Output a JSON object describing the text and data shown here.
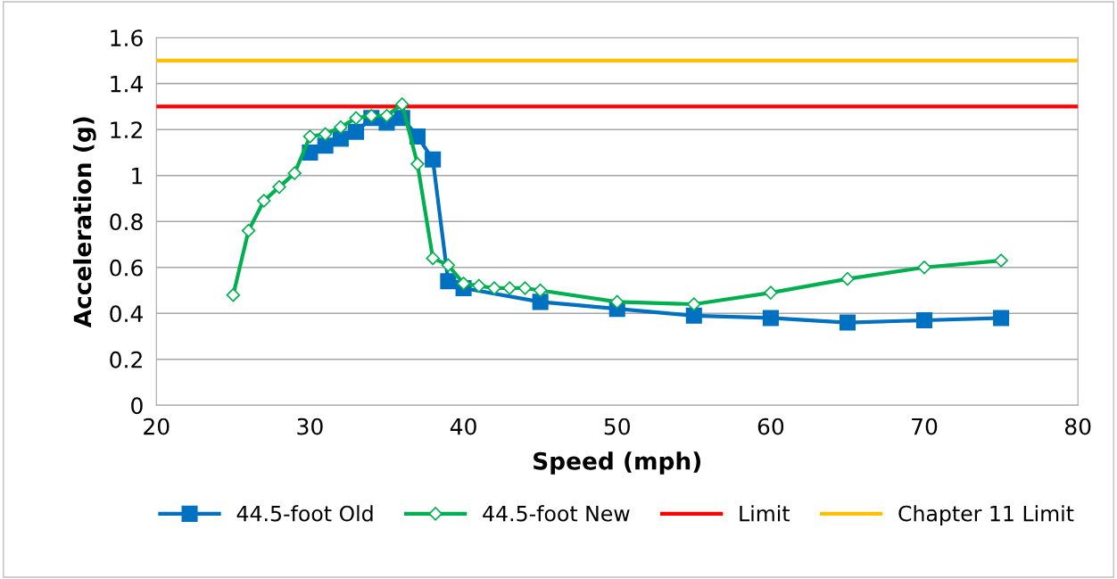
{
  "chart_data": {
    "type": "line",
    "xlabel": "Speed (mph)",
    "ylabel": "Acceleration (g)",
    "xlim": [
      20,
      80
    ],
    "xticks": [
      20,
      30,
      40,
      50,
      60,
      70,
      80
    ],
    "ylim": [
      0,
      1.6
    ],
    "yticks": [
      0,
      0.2,
      0.4,
      0.6,
      0.8,
      1,
      1.2,
      1.4,
      1.6
    ],
    "grid": "y",
    "legend": "bottom",
    "line_style": "solid",
    "series": [
      {
        "name": "44.5-foot Old",
        "color": "#0070c0",
        "marker": "square",
        "x": [
          30,
          31,
          32,
          33,
          34,
          35,
          36,
          37,
          38,
          39,
          40,
          45,
          50,
          55,
          60,
          65,
          70,
          75
        ],
        "values": [
          1.1,
          1.13,
          1.16,
          1.19,
          1.25,
          1.23,
          1.25,
          1.17,
          1.07,
          0.54,
          0.51,
          0.45,
          0.42,
          0.39,
          0.38,
          0.36,
          0.37,
          0.38
        ]
      },
      {
        "name": "44.5-foot New",
        "color": "#00b050",
        "marker": "diamond",
        "x": [
          25,
          26,
          27,
          28,
          29,
          30,
          31,
          32,
          33,
          34,
          35,
          36,
          37,
          38,
          39,
          40,
          41,
          42,
          43,
          44,
          45,
          50,
          55,
          60,
          65,
          70,
          75
        ],
        "values": [
          0.48,
          0.76,
          0.89,
          0.95,
          1.01,
          1.17,
          1.18,
          1.21,
          1.25,
          1.26,
          1.26,
          1.31,
          1.05,
          0.64,
          0.61,
          0.53,
          0.52,
          0.51,
          0.51,
          0.51,
          0.5,
          0.45,
          0.44,
          0.49,
          0.55,
          0.6,
          0.63
        ]
      }
    ],
    "ref_lines": [
      {
        "axis": "y",
        "value": 1.3,
        "label": "Limit",
        "color": "#ff0000"
      },
      {
        "axis": "y",
        "value": 1.5,
        "label": "Chapter 11 Limit",
        "color": "#ffc000"
      }
    ]
  }
}
